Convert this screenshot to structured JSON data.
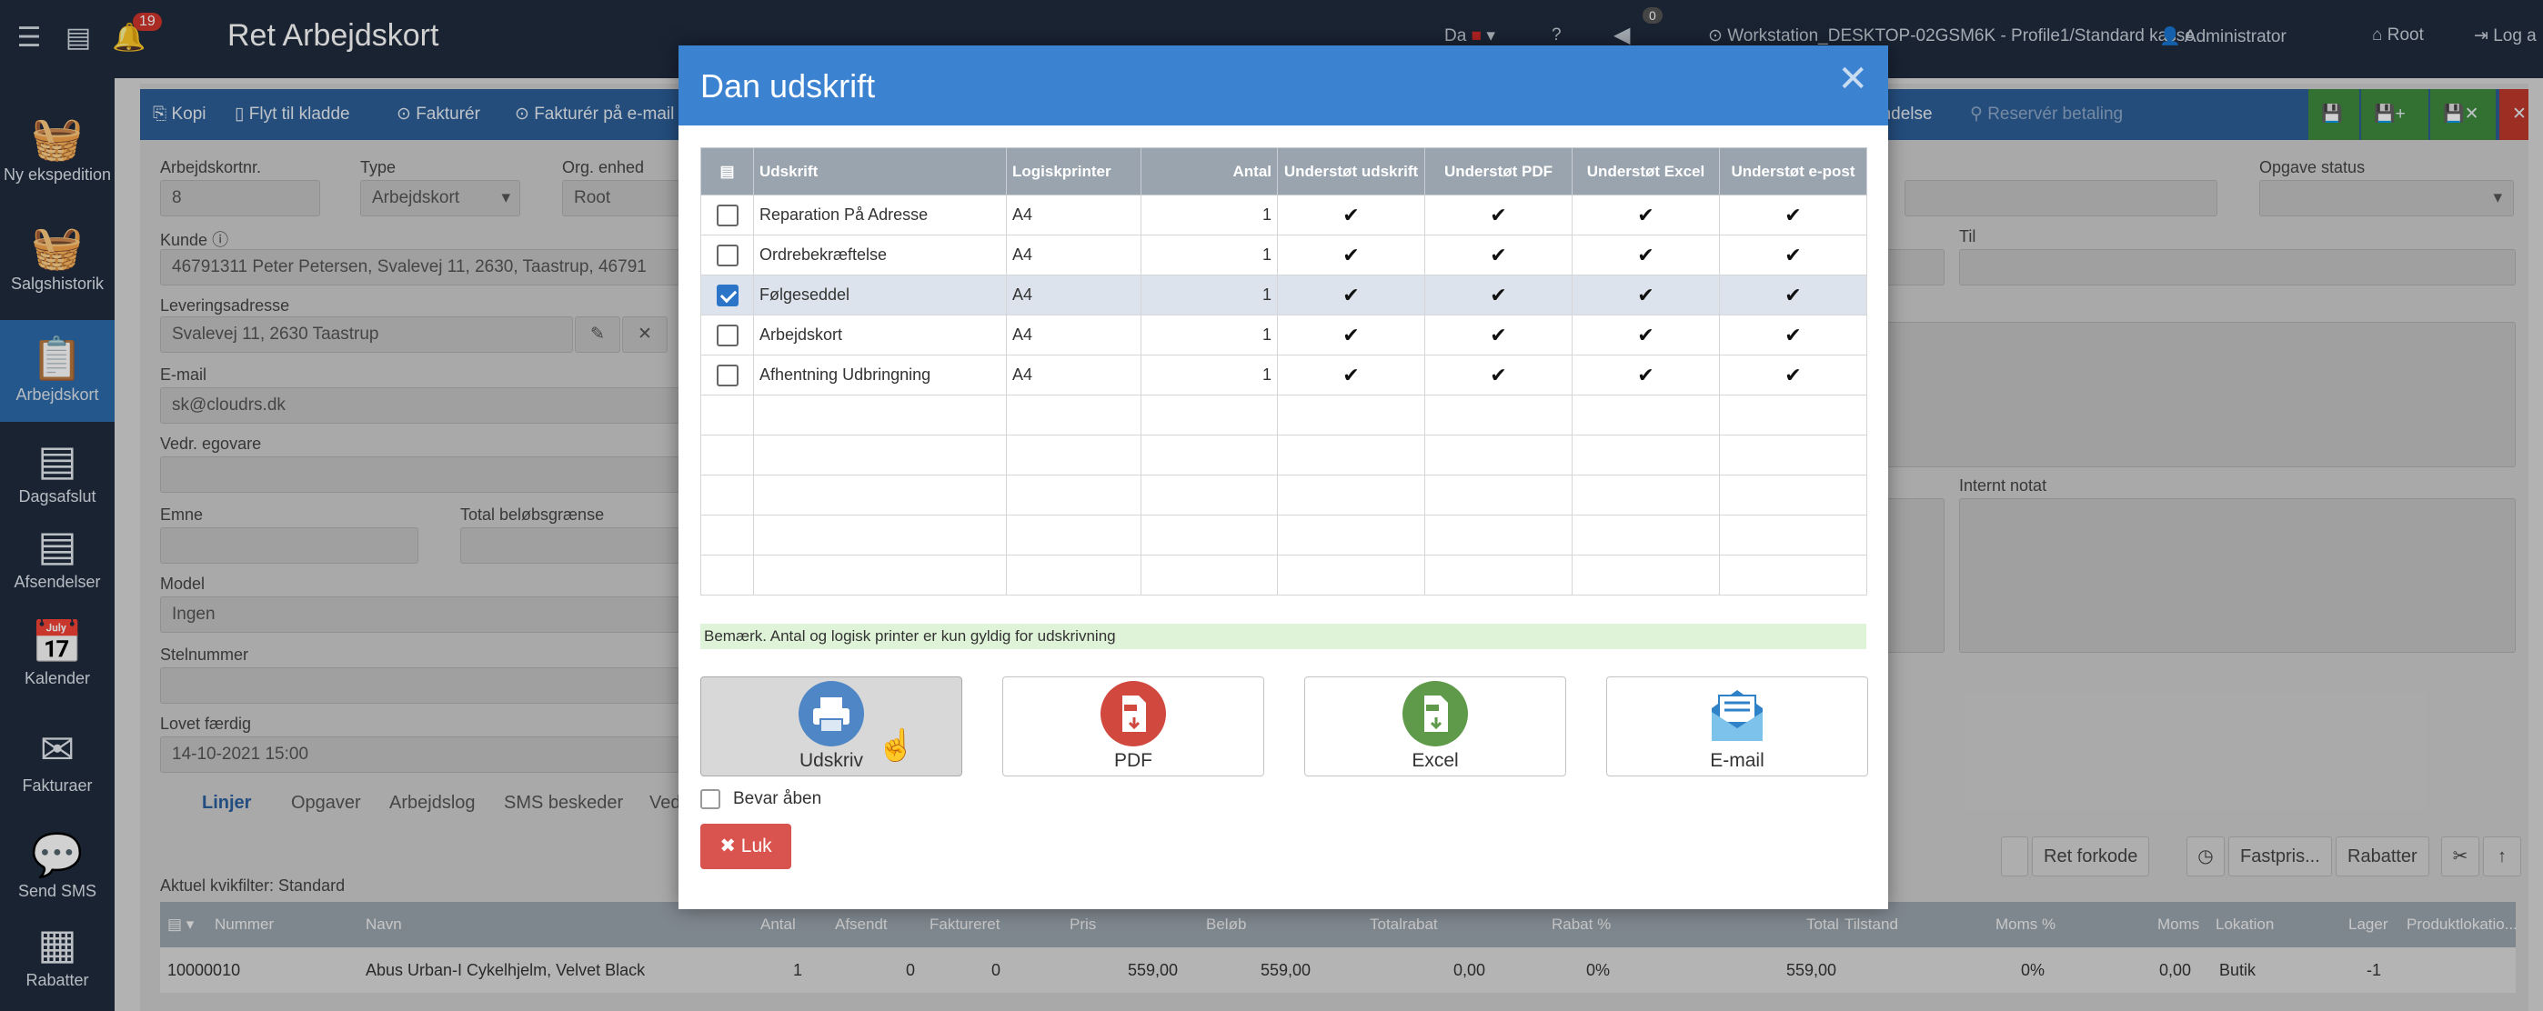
{
  "topbar": {
    "title": "Ret Arbejdskort",
    "notif_count": "19",
    "lang": "Da",
    "sound_count": "0",
    "workstation": "Workstation_DESKTOP-02GSM6K - Profile1/Standard kasse",
    "user": "Administrator",
    "root": "Root",
    "logout": "Log a"
  },
  "sidebar": {
    "items": [
      {
        "label": "Ny ekspedition",
        "icon": "basket-plus-icon"
      },
      {
        "label": "Salgshistorik",
        "icon": "basket-icon"
      },
      {
        "label": "Arbejdskort",
        "icon": "clipboard-tools-icon"
      },
      {
        "label": "Dagsafslut",
        "icon": "list-icon"
      },
      {
        "label": "Afsendelser",
        "icon": "list-icon"
      },
      {
        "label": "Kalender",
        "icon": "calendar-icon"
      },
      {
        "label": "Fakturaer",
        "icon": "envelope-icon"
      },
      {
        "label": "Send SMS",
        "icon": "speech-bubble-icon"
      },
      {
        "label": "Rabatter",
        "icon": "grid-icon"
      }
    ]
  },
  "toolbar": {
    "kopi": "Kopi",
    "flyt": "Flyt til kladde",
    "fakturer": "Fakturér",
    "fakturer_email": "Fakturér på e-mail",
    "afsendelse": "endelse",
    "reserver": "Reservér betaling"
  },
  "form": {
    "arbejdskortnr_label": "Arbejdskortnr.",
    "arbejdskortnr": "8",
    "type_label": "Type",
    "type": "Arbejdskort",
    "org_label": "Org. enhed",
    "org": "Root",
    "opgave_status_label": "Opgave status",
    "kunde_label": "Kunde",
    "kunde": "46791311 Peter Petersen, Svalevej 11, 2630, Taastrup, 46791",
    "til_label": "Til",
    "leveringsadresse_label": "Leveringsadresse",
    "leveringsadresse": "Svalevej 11, 2630 Taastrup",
    "email_label": "E-mail",
    "email": "sk@cloudrs.dk",
    "vedr_label": "Vedr. egovare",
    "emne_label": "Emne",
    "total_label": "Total beløbsgrænse",
    "internt_label": "Internt notat",
    "model_label": "Model",
    "model": "Ingen",
    "stelnummer_label": "Stelnummer",
    "lovet_label": "Lovet færdig",
    "lovet": "14-10-2021 15:00"
  },
  "tabs": [
    "Linjer",
    "Opgaver",
    "Arbejdslog",
    "SMS beskeder",
    "Ved"
  ],
  "filter_label": "Aktuel kvikfilter: Standard",
  "side_buttons": [
    "Ret forkode",
    "Fastpris...",
    "Rabatter"
  ],
  "grid": {
    "headers": [
      "Nummer",
      "Navn",
      "Antal",
      "Afsendt",
      "Faktureret",
      "Pris",
      "Beløb",
      "Totalrabat",
      "Rabat %",
      "Total",
      "Tilstand",
      "Moms %",
      "Moms",
      "Lokation",
      "Lager",
      "Produktlokatio..."
    ],
    "row": [
      "10000010",
      "Abus Urban-I Cykelhjelm, Velvet Black",
      "1",
      "0",
      "0",
      "559,00",
      "559,00",
      "0,00",
      "0%",
      "559,00",
      "",
      "0%",
      "0,00",
      "Butik",
      "-1",
      ""
    ]
  },
  "modal": {
    "title": "Dan udskrift",
    "columns": [
      "Udskrift",
      "Logiskprinter",
      "Antal",
      "Understøt udskrift",
      "Understøt PDF",
      "Understøt Excel",
      "Understøt e-post"
    ],
    "rows": [
      {
        "name": "Reparation På Adresse",
        "printer": "A4",
        "antal": "1",
        "checked": false
      },
      {
        "name": "Ordrebekræftelse",
        "printer": "A4",
        "antal": "1",
        "checked": false
      },
      {
        "name": "Følgeseddel",
        "printer": "A4",
        "antal": "1",
        "checked": true
      },
      {
        "name": "Arbejdskort",
        "printer": "A4",
        "antal": "1",
        "checked": false
      },
      {
        "name": "Afhentning Udbringning",
        "printer": "A4",
        "antal": "1",
        "checked": false
      }
    ],
    "check_glyph": "✔",
    "note": "Bemærk. Antal og logisk printer er kun gyldig for udskrivning",
    "buttons": {
      "print": "Udskriv",
      "pdf": "PDF",
      "excel": "Excel",
      "email": "E-mail"
    },
    "bevar": "Bevar åben",
    "luk": "Luk"
  },
  "colors": {
    "modal_header": "#3b82d1",
    "print_circle": "#4f86c6",
    "pdf_circle": "#d0483e",
    "excel_circle": "#5e9a4a",
    "close_button": "#d9534f"
  }
}
